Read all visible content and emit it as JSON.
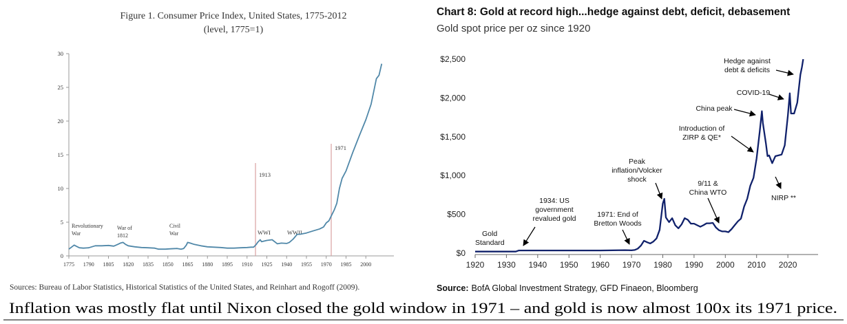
{
  "chart_data": [
    {
      "type": "line",
      "title": "Figure 1. Consumer Price Index, United States, 1775-2012",
      "subtitle": "(level, 1775=1)",
      "x_ticks": [
        "1775",
        "1790",
        "1805",
        "1820",
        "1835",
        "1850",
        "1865",
        "1880",
        "1895",
        "1910",
        "1925",
        "1940",
        "1955",
        "1970",
        "1985",
        "2000"
      ],
      "y_ticks": [
        "0",
        "5",
        "10",
        "15",
        "20",
        "25",
        "30"
      ],
      "xlim": [
        1775,
        2015
      ],
      "ylim": [
        0,
        30
      ],
      "series": [
        {
          "name": "CPI (1775=1)",
          "color": "#4f87a8",
          "x": [
            1775,
            1777,
            1779,
            1781,
            1783,
            1786,
            1790,
            1795,
            1800,
            1805,
            1809,
            1812,
            1814,
            1816,
            1818,
            1820,
            1825,
            1830,
            1835,
            1840,
            1843,
            1848,
            1852,
            1857,
            1860,
            1862,
            1864,
            1865,
            1867,
            1870,
            1875,
            1880,
            1885,
            1890,
            1895,
            1900,
            1905,
            1910,
            1913,
            1915,
            1917,
            1918,
            1920,
            1921,
            1925,
            1929,
            1933,
            1936,
            1940,
            1942,
            1945,
            1948,
            1950,
            1955,
            1960,
            1965,
            1968,
            1970,
            1972,
            1974,
            1976,
            1978,
            1980,
            1982,
            1985,
            1990,
            1995,
            2000,
            2004,
            2008,
            2010,
            2012
          ],
          "values": [
            1.0,
            1.3,
            1.6,
            1.4,
            1.2,
            1.15,
            1.2,
            1.5,
            1.5,
            1.55,
            1.45,
            1.7,
            1.9,
            2.0,
            1.7,
            1.5,
            1.35,
            1.25,
            1.2,
            1.15,
            1.0,
            1.0,
            1.05,
            1.1,
            1.0,
            1.1,
            1.6,
            2.0,
            1.9,
            1.7,
            1.5,
            1.35,
            1.3,
            1.25,
            1.15,
            1.15,
            1.2,
            1.25,
            1.3,
            1.3,
            1.7,
            2.0,
            2.4,
            2.1,
            2.3,
            2.4,
            1.8,
            1.9,
            1.85,
            2.0,
            2.5,
            3.2,
            3.2,
            3.4,
            3.7,
            4.0,
            4.3,
            4.9,
            5.2,
            6.0,
            6.8,
            7.8,
            10.0,
            11.5,
            12.6,
            15.3,
            17.8,
            20.2,
            22.5,
            26.3,
            26.8,
            28.5
          ]
        }
      ],
      "annotations": [
        {
          "text": "Revolutionary War",
          "x": 1778
        },
        {
          "text": "War of 1812",
          "x": 1813
        },
        {
          "text": "Civil War",
          "x": 1863
        },
        {
          "text": "WWI",
          "x": 1918
        },
        {
          "text": "WWII",
          "x": 1943
        },
        {
          "text": "1913",
          "x": 1913,
          "line_color": "#d8a0a0"
        },
        {
          "text": "1971",
          "x": 1971,
          "line_color": "#d8a0a0"
        }
      ],
      "source": "Sources: Bureau of Labor Statistics, Historical Statistics of the United States, and Reinhart and Rogoff (2009)."
    },
    {
      "type": "line",
      "title": "Chart 8: Gold at record high...hedge against debt, deficit, debasement",
      "subtitle": "Gold spot price per oz since 1920",
      "x_ticks": [
        "1920",
        "1930",
        "1940",
        "1950",
        "1960",
        "1970",
        "1980",
        "1990",
        "2000",
        "2010",
        "2020"
      ],
      "y_ticks": [
        "$0",
        "$500",
        "$1,000",
        "$1,500",
        "$2,000",
        "$2,500"
      ],
      "xlim": [
        1920,
        2029
      ],
      "ylim": [
        0,
        2500
      ],
      "series": [
        {
          "name": "Gold spot price (USD/oz)",
          "color": "#10216b",
          "x": [
            1920,
            1925,
            1933,
            1934,
            1940,
            1950,
            1960,
            1968,
            1970,
            1971,
            1972,
            1973,
            1974,
            1975,
            1976,
            1977,
            1978,
            1979,
            1980,
            1980.5,
            1981,
            1982,
            1983,
            1984,
            1985,
            1986,
            1987,
            1988,
            1989,
            1990,
            1991,
            1992,
            1993,
            1994,
            1995,
            1996,
            1997,
            1998,
            1999,
            2000,
            2001,
            2002,
            2003,
            2004,
            2005,
            2006,
            2007,
            2008,
            2009,
            2010,
            2011,
            2011.7,
            2012,
            2013,
            2013.5,
            2014,
            2015,
            2016,
            2017,
            2018,
            2019,
            2020,
            2020.6,
            2021,
            2022,
            2023,
            2024,
            2024.5,
            2024.9
          ],
          "values": [
            20.67,
            20.67,
            20.67,
            35,
            35,
            35,
            35,
            39,
            36,
            41,
            58,
            97,
            160,
            140,
            125,
            150,
            190,
            300,
            640,
            700,
            460,
            400,
            450,
            360,
            320,
            370,
            450,
            430,
            380,
            380,
            360,
            340,
            360,
            385,
            385,
            390,
            330,
            295,
            280,
            280,
            270,
            310,
            360,
            410,
            445,
            600,
            700,
            870,
            970,
            1220,
            1570,
            1830,
            1680,
            1410,
            1250,
            1260,
            1160,
            1250,
            1260,
            1270,
            1390,
            1770,
            2060,
            1800,
            1800,
            1940,
            2300,
            2400,
            2500
          ]
        }
      ],
      "annotations": [
        {
          "text": "Gold Standard"
        },
        {
          "text": "1934: US government revalued gold",
          "x": 1934
        },
        {
          "text": "1971: End of Bretton Woods",
          "x": 1971
        },
        {
          "text": "Peak inflation/Volcker shock",
          "x": 1980
        },
        {
          "text": "9/11 & China WTO",
          "x": 2001
        },
        {
          "text": "Introduction of ZIRP & QE*",
          "x": 2009
        },
        {
          "text": "China peak",
          "x": 2011
        },
        {
          "text": "NIRP **",
          "x": 2015
        },
        {
          "text": "COVID-19",
          "x": 2020
        },
        {
          "text": "Hedge against debt & deficits",
          "x": 2024
        }
      ],
      "source_label": "Source:",
      "source_text": "BofA Global Investment Strategy, GFD Finaeon, Bloomberg"
    }
  ],
  "left_chart": {
    "title": "Figure 1. Consumer Price Index, United States, 1775-2012",
    "subtitle": "(level, 1775=1)",
    "annotation_revolutionary_line1": "Revolutionary",
    "annotation_revolutionary_line2": "War",
    "annotation_1812_line1": "War of",
    "annotation_1812_line2": "1812",
    "annotation_civil_line1": "Civil",
    "annotation_civil_line2": "War",
    "annotation_wwi": "WWI",
    "annotation_wwii": "WWII",
    "marker_1913": "1913",
    "marker_1971": "1971",
    "source": "Sources: Bureau of Labor Statistics, Historical Statistics of the United States, and Reinhart and Rogoff (2009)."
  },
  "right_chart": {
    "title": "Chart 8: Gold at record high...hedge against debt, deficit, debasement",
    "subtitle": "Gold spot price per oz since 1920",
    "ann_gold_standard_1": "Gold",
    "ann_gold_standard_2": "Standard",
    "ann_1934_1": "1934: US",
    "ann_1934_2": "government",
    "ann_1934_3": "revalued gold",
    "ann_1971_1": "1971: End of",
    "ann_1971_2": "Bretton Woods",
    "ann_volcker_1": "Peak",
    "ann_volcker_2": "inflation/Volcker",
    "ann_volcker_3": "shock",
    "ann_911_1": "9/11 &",
    "ann_911_2": "China WTO",
    "ann_zirp_1": "Introduction of",
    "ann_zirp_2": "ZIRP & QE*",
    "ann_china_peak": "China peak",
    "ann_nirp": "NIRP **",
    "ann_covid": "COVID-19",
    "ann_hedge_1": "Hedge against",
    "ann_hedge_2": "debt & deficits",
    "source_label": "Source:",
    "source_text": "BofA Global Investment Strategy, GFD Finaeon, Bloomberg"
  },
  "caption": "Inflation was mostly flat until Nixon closed the gold window in 1971 – and gold is now almost 100x its 1971 price.",
  "colors": {
    "cpi_line": "#4f87a8",
    "gold_line": "#10216b",
    "marker_line": "#d8a0a0",
    "axis": "#999999",
    "text": "#1a1a1a"
  }
}
